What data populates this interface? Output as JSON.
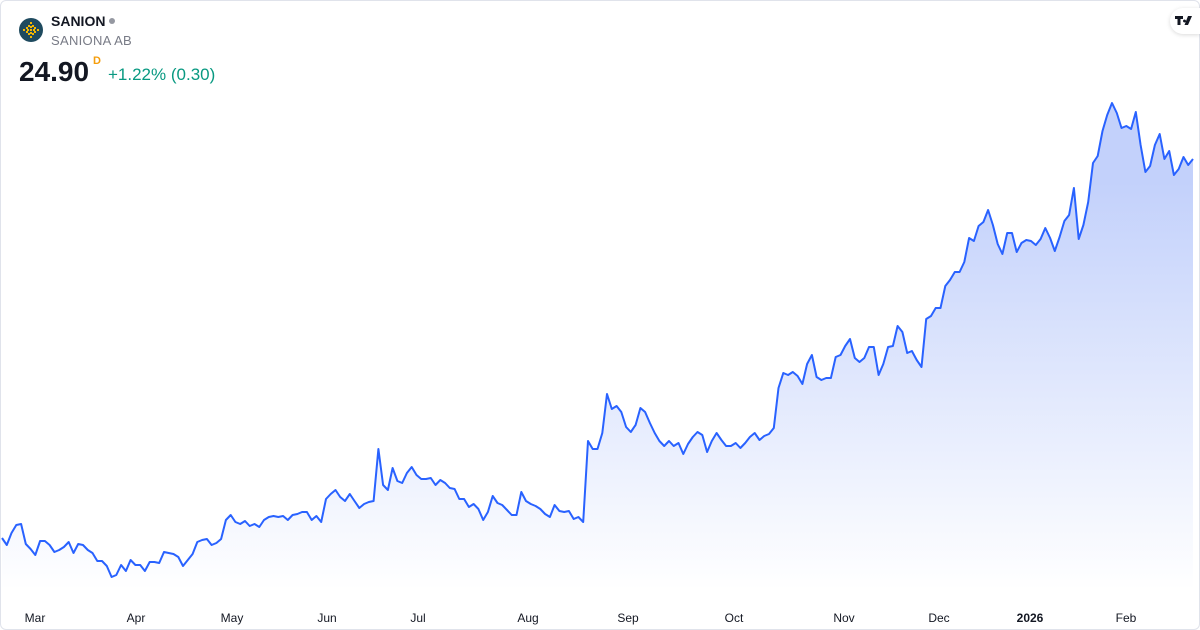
{
  "header": {
    "symbol": "SANION",
    "company": "SANIONA AB",
    "price": "24.90",
    "interval": "D",
    "change": "+1.22% (0.30)"
  },
  "colors": {
    "line": "#2962ff",
    "fill_top": "#c3d1fb",
    "fill_bottom": "#ffffff",
    "change": "#089981",
    "interval_badge": "#f59d0b",
    "logo_bg": "#1e4a5f",
    "logo_mark": "#f5b800"
  },
  "icons": {
    "logo": "saniona-logo-icon",
    "brand": "tradingview-logo-icon",
    "status": "market-status-dot-icon"
  },
  "chart_data": {
    "type": "area",
    "title": "SANION",
    "interval": "daily",
    "ylim": [
      3.35,
      32.85
    ],
    "grid": false,
    "x_ticks": [
      {
        "label": "Mar",
        "bold": false
      },
      {
        "label": "Apr",
        "bold": false
      },
      {
        "label": "May",
        "bold": false
      },
      {
        "label": "Jun",
        "bold": false
      },
      {
        "label": "Jul",
        "bold": false
      },
      {
        "label": "Aug",
        "bold": false
      },
      {
        "label": "Sep",
        "bold": false
      },
      {
        "label": "Oct",
        "bold": false
      },
      {
        "label": "Nov",
        "bold": false
      },
      {
        "label": "Dec",
        "bold": false
      },
      {
        "label": "2026",
        "bold": true
      },
      {
        "label": "Feb",
        "bold": false
      }
    ],
    "values": [
      5.95,
      5.6,
      6.2,
      6.6,
      6.65,
      5.65,
      5.4,
      5.1,
      5.8,
      5.8,
      5.6,
      5.25,
      5.35,
      5.5,
      5.75,
      5.2,
      5.65,
      5.6,
      5.35,
      5.2,
      4.8,
      4.8,
      4.55,
      4.0,
      4.1,
      4.6,
      4.3,
      4.85,
      4.6,
      4.6,
      4.3,
      4.75,
      4.75,
      4.7,
      5.25,
      5.2,
      5.15,
      5.0,
      4.55,
      4.85,
      5.15,
      5.75,
      5.85,
      5.9,
      5.6,
      5.7,
      5.9,
      6.85,
      7.1,
      6.75,
      6.65,
      6.8,
      6.55,
      6.65,
      6.5,
      6.85,
      7.0,
      7.05,
      7.0,
      7.05,
      6.85,
      7.1,
      7.15,
      7.25,
      7.25,
      6.85,
      7.05,
      6.75,
      7.9,
      8.15,
      8.35,
      8.0,
      7.8,
      8.15,
      7.8,
      7.45,
      7.65,
      7.75,
      7.8,
      10.4,
      8.6,
      8.35,
      9.45,
      8.8,
      8.7,
      9.2,
      9.5,
      9.1,
      8.9,
      8.9,
      8.95,
      8.6,
      8.85,
      8.7,
      8.45,
      8.4,
      7.9,
      7.9,
      7.5,
      7.65,
      7.4,
      6.85,
      7.25,
      8.05,
      7.7,
      7.6,
      7.35,
      7.1,
      7.1,
      8.25,
      7.8,
      7.65,
      7.55,
      7.4,
      7.15,
      7.0,
      7.6,
      7.3,
      7.25,
      7.3,
      6.9,
      7.0,
      6.75,
      10.8,
      10.4,
      10.4,
      11.2,
      13.15,
      12.4,
      12.55,
      12.25,
      11.5,
      11.25,
      11.6,
      12.45,
      12.25,
      11.7,
      11.2,
      10.8,
      10.55,
      10.8,
      10.55,
      10.7,
      10.15,
      10.65,
      11.0,
      11.25,
      11.1,
      10.25,
      10.8,
      11.2,
      10.85,
      10.55,
      10.55,
      10.7,
      10.45,
      10.7,
      11.0,
      11.2,
      10.85,
      11.05,
      11.15,
      11.45,
      13.45,
      14.2,
      14.1,
      14.25,
      14.05,
      13.65,
      14.65,
      15.1,
      14.0,
      13.85,
      13.95,
      13.95,
      15.0,
      15.1,
      15.55,
      15.9,
      14.95,
      14.75,
      14.95,
      15.5,
      15.5,
      14.1,
      14.65,
      15.5,
      15.55,
      16.55,
      16.25,
      15.2,
      15.3,
      14.85,
      14.5,
      16.9,
      17.05,
      17.45,
      17.45,
      18.55,
      18.85,
      19.25,
      19.25,
      19.75,
      20.95,
      20.8,
      21.55,
      21.75,
      22.35,
      21.6,
      20.65,
      20.15,
      21.2,
      21.2,
      20.25,
      20.7,
      20.85,
      20.8,
      20.6,
      20.9,
      21.45,
      20.95,
      20.3,
      21.0,
      21.8,
      22.1,
      23.45,
      20.9,
      21.6,
      22.75,
      24.7,
      25.05,
      26.3,
      27.1,
      27.7,
      27.2,
      26.45,
      26.55,
      26.4,
      27.25,
      25.6,
      24.25,
      24.55,
      25.6,
      26.15,
      24.9,
      25.3,
      24.1,
      24.4,
      25.0,
      24.6,
      24.9
    ]
  }
}
